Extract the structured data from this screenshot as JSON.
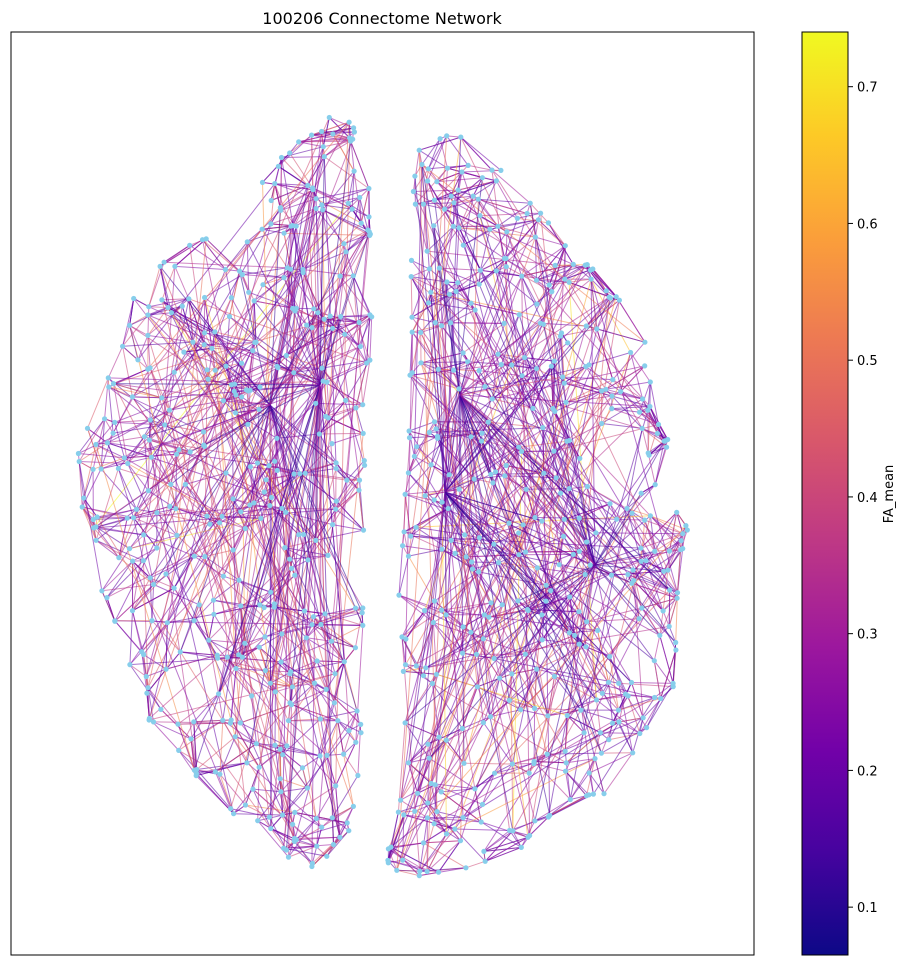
{
  "chart_data": {
    "type": "network",
    "title": "100206 Connectome Network",
    "node_color": "#87ceeb",
    "edge_colormap": "plasma",
    "colorbar": {
      "label": "FA_mean",
      "range": [
        0.065,
        0.74
      ],
      "ticks": [
        "0.1",
        "0.2",
        "0.3",
        "0.4",
        "0.5",
        "0.6",
        "0.7"
      ],
      "tick_values": [
        0.1,
        0.2,
        0.3,
        0.4,
        0.5,
        0.6,
        0.7
      ],
      "stops": [
        "#0d0887",
        "#46039f",
        "#7201a8",
        "#9c179e",
        "#bd3786",
        "#d8576b",
        "#ed7953",
        "#fb9f3a",
        "#fdca26",
        "#f0f921"
      ]
    },
    "axes_ticks": "off",
    "hemispheres": [
      "left",
      "right"
    ]
  }
}
